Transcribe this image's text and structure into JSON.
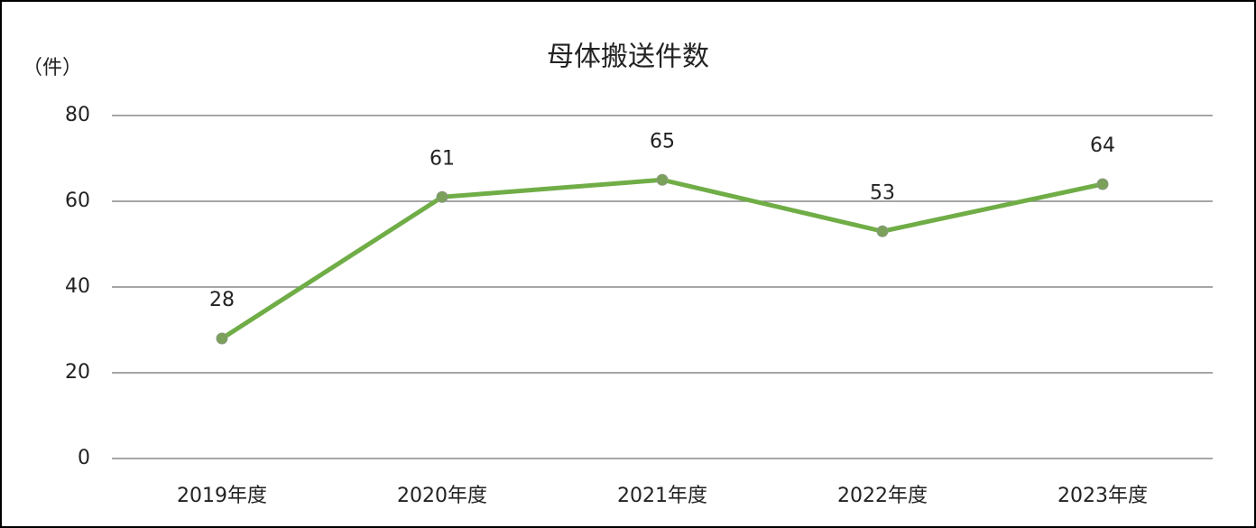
{
  "chart_data": {
    "type": "line",
    "title": "母体搬送件数",
    "y_label": "（件）",
    "categories": [
      "2019年度",
      "2020年度",
      "2021年度",
      "2022年度",
      "2023年度"
    ],
    "values": [
      28,
      61,
      65,
      53,
      64
    ],
    "color": "#70ad47",
    "ylim": [
      0,
      80
    ],
    "yticks": [
      0,
      20,
      40,
      60,
      80
    ],
    "grid": true
  }
}
